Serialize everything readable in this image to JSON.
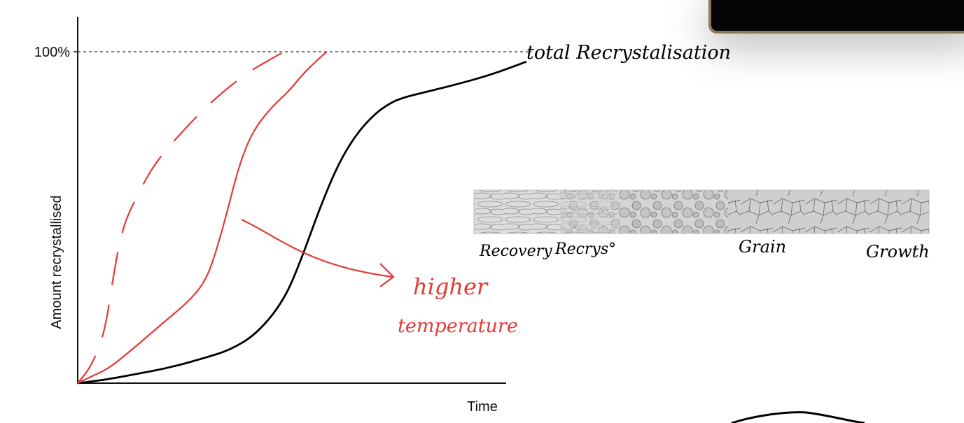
{
  "chart_data": {
    "type": "line",
    "ylabel": "Amount recrystallised",
    "xlabel": "Time",
    "y_tick_label": "100%",
    "grid": false,
    "series": [
      {
        "color": "#000000",
        "style": "solid",
        "points": [
          [
            0,
            0
          ],
          [
            0.06,
            0.01
          ],
          [
            0.12,
            0.025
          ],
          [
            0.2,
            0.045
          ],
          [
            0.28,
            0.075
          ],
          [
            0.34,
            0.1
          ],
          [
            0.4,
            0.15
          ],
          [
            0.46,
            0.25
          ],
          [
            0.5,
            0.38
          ],
          [
            0.54,
            0.53
          ],
          [
            0.58,
            0.66
          ],
          [
            0.62,
            0.75
          ],
          [
            0.66,
            0.81
          ],
          [
            0.69,
            0.84
          ],
          [
            0.72,
            0.86
          ],
          [
            0.78,
            0.88
          ],
          [
            0.84,
            0.9
          ],
          [
            0.92,
            0.93
          ],
          [
            1.0,
            0.97
          ]
        ]
      },
      {
        "color": "#e53935",
        "style": "solid",
        "points": [
          [
            0,
            0
          ],
          [
            0.03,
            0.02
          ],
          [
            0.07,
            0.045
          ],
          [
            0.12,
            0.1
          ],
          [
            0.18,
            0.17
          ],
          [
            0.25,
            0.25
          ],
          [
            0.28,
            0.3
          ],
          [
            0.3,
            0.36
          ],
          [
            0.33,
            0.5
          ],
          [
            0.36,
            0.66
          ],
          [
            0.39,
            0.76
          ],
          [
            0.43,
            0.83
          ],
          [
            0.47,
            0.88
          ],
          [
            0.5,
            0.93
          ],
          [
            0.53,
            0.97
          ],
          [
            0.555,
            1.0
          ]
        ]
      },
      {
        "color": "#e53935",
        "style": "dashed",
        "points": [
          [
            0,
            0
          ],
          [
            0.03,
            0.05
          ],
          [
            0.06,
            0.15
          ],
          [
            0.08,
            0.33
          ],
          [
            0.1,
            0.47
          ],
          [
            0.13,
            0.56
          ],
          [
            0.17,
            0.66
          ],
          [
            0.22,
            0.74
          ],
          [
            0.29,
            0.84
          ],
          [
            0.37,
            0.93
          ],
          [
            0.42,
            0.97
          ],
          [
            0.46,
            1.0
          ]
        ]
      }
    ]
  },
  "annotations": {
    "total": "total Recrystalisation",
    "arrow_text_line1": "higher",
    "arrow_text_line2": "temperature",
    "stages": [
      "Recovery",
      "Recrys°",
      "Grain",
      "Growth"
    ]
  },
  "colors": {
    "ink_red": "#e53935",
    "ink_black": "#000000"
  }
}
